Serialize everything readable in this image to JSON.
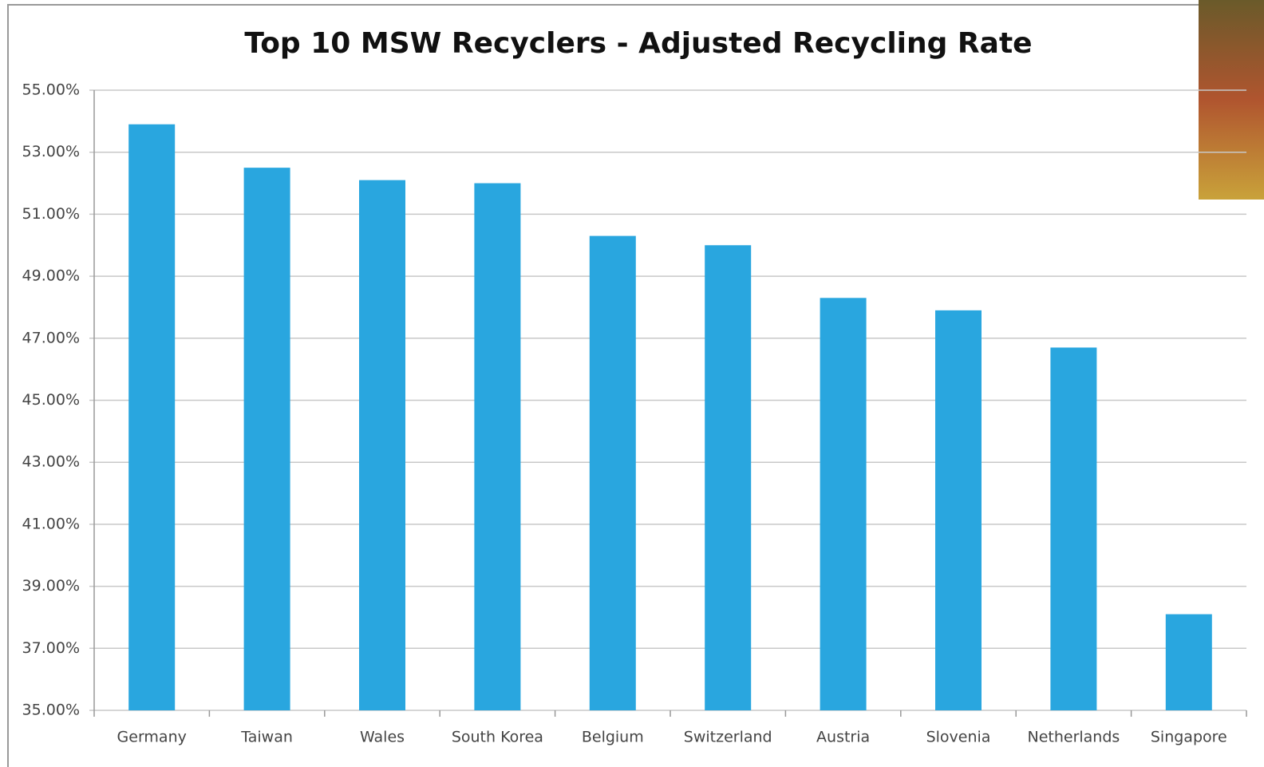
{
  "chart_data": {
    "type": "bar",
    "title": "Top 10 MSW Recyclers - Adjusted Recycling Rate",
    "categories": [
      "Germany",
      "Taiwan",
      "Wales",
      "South Korea",
      "Belgium",
      "Switzerland",
      "Austria",
      "Slovenia",
      "Netherlands",
      "Singapore"
    ],
    "values": [
      53.9,
      52.5,
      52.1,
      52.0,
      50.3,
      50.0,
      48.3,
      47.9,
      46.7,
      38.1
    ],
    "color": "#29a6df",
    "ylim": [
      35,
      55
    ],
    "yticks": [
      {
        "value": 35,
        "label": "35.00%"
      },
      {
        "value": 37,
        "label": "37.00%"
      },
      {
        "value": 39,
        "label": "39.00%"
      },
      {
        "value": 41,
        "label": "41.00%"
      },
      {
        "value": 43,
        "label": "43.00%"
      },
      {
        "value": 45,
        "label": "45.00%"
      },
      {
        "value": 47,
        "label": "47.00%"
      },
      {
        "value": 49,
        "label": "49.00%"
      },
      {
        "value": 51,
        "label": "51.00%"
      },
      {
        "value": 53,
        "label": "53.00%"
      },
      {
        "value": 55,
        "label": "55.00%"
      }
    ],
    "grid": true
  }
}
